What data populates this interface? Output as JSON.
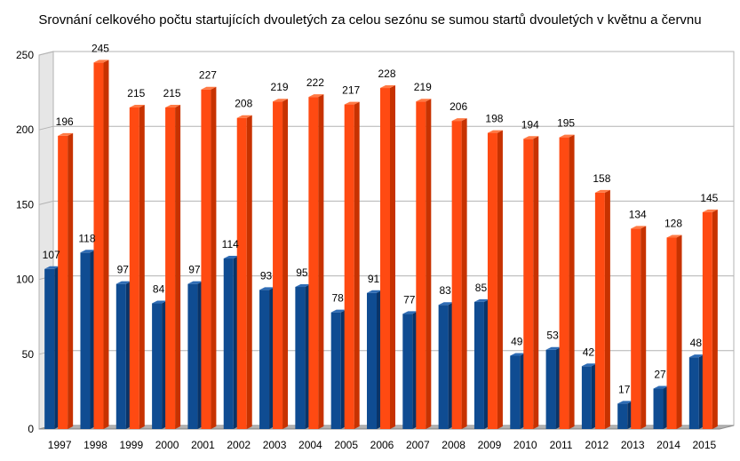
{
  "chart_data": {
    "type": "bar",
    "title": "Srovnání celkového počtu startujících dvouletých za celou sezónu se sumou startů dvouletých v květnu a červnu",
    "xlabel": "",
    "ylabel": "",
    "ylim": [
      0,
      250
    ],
    "yticks": [
      "0",
      "50",
      "100",
      "150",
      "200",
      "250"
    ],
    "grid": true,
    "legend": "none",
    "categories": [
      "1997",
      "1998",
      "1999",
      "2000",
      "2001",
      "2002",
      "2003",
      "2004",
      "2005",
      "2006",
      "2007",
      "2008",
      "2009",
      "2010",
      "2011",
      "2012",
      "2013",
      "2014",
      "2015"
    ],
    "series": [
      {
        "values": [
          107,
          118,
          97,
          84,
          97,
          114,
          93,
          95,
          78,
          91,
          77,
          83,
          85,
          49,
          53,
          42,
          17,
          27,
          48
        ],
        "color": "#0f4c92",
        "color_dark": "#0a3468",
        "color_light": "#2e6cb5"
      },
      {
        "values": [
          196,
          245,
          215,
          215,
          227,
          208,
          219,
          222,
          217,
          228,
          219,
          206,
          198,
          194,
          195,
          158,
          134,
          128,
          145
        ],
        "color": "#ff4a12",
        "color_dark": "#c73200",
        "color_light": "#ff7a45"
      }
    ]
  }
}
